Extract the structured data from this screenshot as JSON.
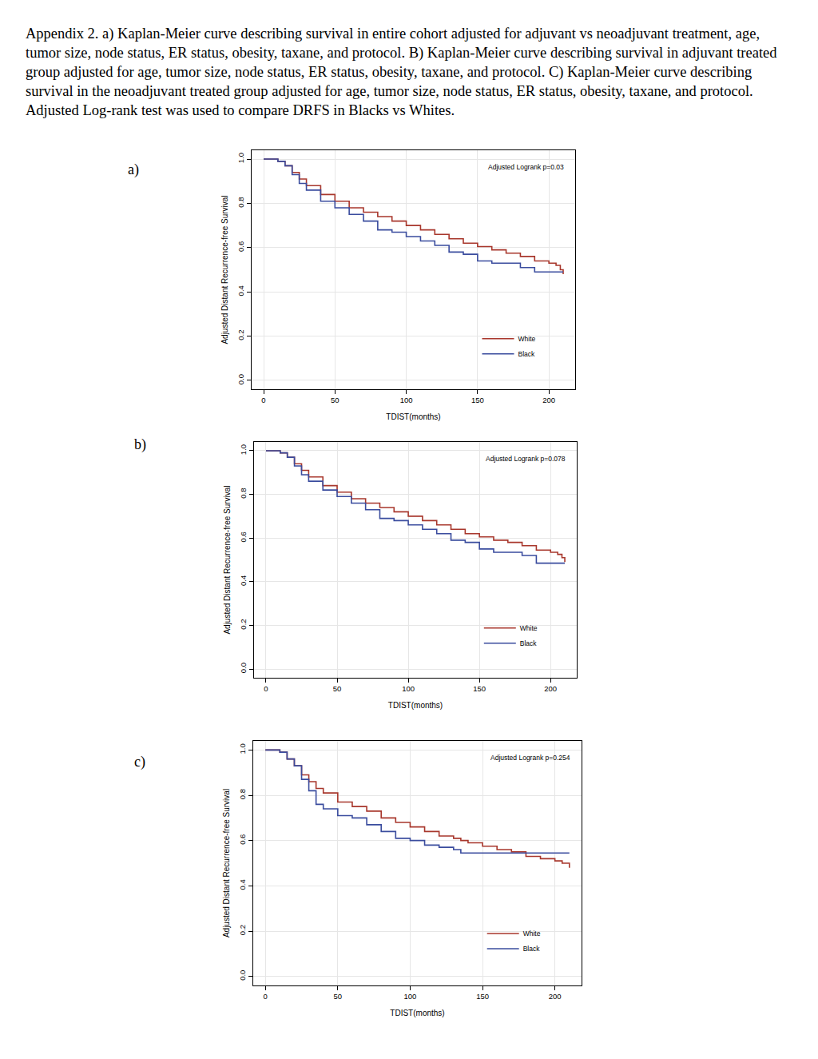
{
  "caption": "Appendix 2. a) Kaplan-Meier curve describing survival in entire cohort adjusted for adjuvant vs neoadjuvant treatment, age, tumor size, node status, ER status, obesity, taxane, and protocol. B) Kaplan-Meier curve describing survival in adjuvant treated group adjusted for age, tumor size, node status, ER status, obesity, taxane, and protocol. C) Kaplan-Meier curve describing survival in the  neoadjuvant treated group adjusted for age, tumor size, node status, ER status, obesity, taxane, and protocol. Adjusted Log-rank test was used to compare DRFS in Blacks vs Whites.",
  "panel_labels": [
    "a)",
    "b)",
    "c)"
  ],
  "chart_data": [
    {
      "type": "line",
      "x_label": "TDIST(months)",
      "y_label": "Adjusted Distant Recurrence-free Survival",
      "annotations": [
        "Adjusted Logrank p=0.03"
      ],
      "x": [
        0,
        5,
        10,
        15,
        20,
        25,
        30,
        40,
        50,
        60,
        70,
        80,
        90,
        100,
        110,
        120,
        130,
        140,
        150,
        160,
        170,
        180,
        190,
        200,
        205,
        208,
        210
      ],
      "series": [
        {
          "name": "White",
          "color": "#a8372c",
          "values": [
            1,
            1,
            0.99,
            0.97,
            0.94,
            0.91,
            0.88,
            0.84,
            0.81,
            0.78,
            0.76,
            0.74,
            0.72,
            0.7,
            0.68,
            0.66,
            0.64,
            0.62,
            0.605,
            0.59,
            0.575,
            0.56,
            0.54,
            0.53,
            0.52,
            0.5,
            0.48
          ]
        },
        {
          "name": "Black",
          "color": "#3a4c9e",
          "values": [
            1,
            1,
            0.99,
            0.97,
            0.93,
            0.89,
            0.86,
            0.81,
            0.78,
            0.75,
            0.72,
            0.68,
            0.67,
            0.65,
            0.63,
            0.61,
            0.58,
            0.57,
            0.54,
            0.53,
            0.53,
            0.51,
            0.49,
            0.49,
            0.49,
            0.49,
            0.49
          ]
        }
      ],
      "xlim": [
        -8.4,
        218.4
      ],
      "xticks": [
        0,
        50,
        100,
        150,
        200
      ],
      "ylim": [
        -0.04,
        1.04
      ],
      "yticks": [
        {
          "value": 0,
          "label": "0.0"
        },
        0.2,
        0.4,
        0.6,
        0.8,
        {
          "value": 1,
          "label": "1.0"
        }
      ],
      "grid": true,
      "legend": "lower right",
      "line_style": "step"
    },
    {
      "type": "line",
      "x_label": "TDIST(months)",
      "y_label": "Adjusted Distant Recurrence-free Survival",
      "annotations": [
        "Adjusted Logrank p=0.078"
      ],
      "x": [
        0,
        5,
        10,
        15,
        20,
        25,
        30,
        40,
        50,
        60,
        70,
        80,
        90,
        100,
        110,
        120,
        130,
        140,
        150,
        160,
        170,
        180,
        190,
        200,
        205,
        208,
        210
      ],
      "series": [
        {
          "name": "White",
          "color": "#a8372c",
          "values": [
            1,
            1,
            0.99,
            0.97,
            0.94,
            0.91,
            0.88,
            0.84,
            0.81,
            0.78,
            0.76,
            0.74,
            0.72,
            0.7,
            0.68,
            0.66,
            0.64,
            0.62,
            0.605,
            0.59,
            0.58,
            0.565,
            0.545,
            0.535,
            0.525,
            0.51,
            0.49
          ]
        },
        {
          "name": "Black",
          "color": "#3a4c9e",
          "values": [
            1,
            1,
            0.99,
            0.97,
            0.93,
            0.89,
            0.86,
            0.82,
            0.79,
            0.76,
            0.73,
            0.69,
            0.68,
            0.66,
            0.64,
            0.62,
            0.59,
            0.58,
            0.55,
            0.535,
            0.535,
            0.52,
            0.485,
            0.485,
            0.485,
            0.485,
            0.485
          ]
        }
      ],
      "xlim": [
        -8.4,
        218.4
      ],
      "xticks": [
        0,
        50,
        100,
        150,
        200
      ],
      "ylim": [
        -0.04,
        1.04
      ],
      "yticks": [
        {
          "value": 0,
          "label": "0.0"
        },
        0.2,
        0.4,
        0.6,
        0.8,
        {
          "value": 1,
          "label": "1.0"
        }
      ],
      "grid": true,
      "legend": "lower right",
      "line_style": "step"
    },
    {
      "type": "line",
      "x_label": "TDIST(months)",
      "y_label": "Adjusted Distant Recurrence-free Survival",
      "annotations": [
        "Adjusted Logrank p=0.254"
      ],
      "x": [
        0,
        5,
        10,
        15,
        20,
        25,
        30,
        35,
        40,
        50,
        60,
        70,
        80,
        90,
        100,
        110,
        120,
        130,
        135,
        140,
        150,
        160,
        170,
        180,
        190,
        200,
        205,
        210
      ],
      "series": [
        {
          "name": "White",
          "color": "#a8372c",
          "values": [
            1,
            1,
            0.99,
            0.96,
            0.93,
            0.89,
            0.86,
            0.83,
            0.81,
            0.77,
            0.75,
            0.73,
            0.7,
            0.68,
            0.66,
            0.64,
            0.62,
            0.61,
            0.6,
            0.59,
            0.575,
            0.56,
            0.55,
            0.53,
            0.52,
            0.51,
            0.5,
            0.48
          ]
        },
        {
          "name": "Black",
          "color": "#3a4c9e",
          "values": [
            1,
            1,
            0.99,
            0.96,
            0.93,
            0.87,
            0.82,
            0.76,
            0.74,
            0.71,
            0.7,
            0.67,
            0.64,
            0.61,
            0.6,
            0.58,
            0.57,
            0.56,
            0.545,
            0.545,
            0.545,
            0.545,
            0.545,
            0.545,
            0.545,
            0.545,
            0.545,
            0.545
          ]
        }
      ],
      "xlim": [
        -8.4,
        218.4
      ],
      "xticks": [
        0,
        50,
        100,
        150,
        200
      ],
      "ylim": [
        -0.04,
        1.04
      ],
      "yticks": [
        {
          "value": 0,
          "label": "0.0"
        },
        0.2,
        0.4,
        0.6,
        0.8,
        {
          "value": 1,
          "label": "1.0"
        }
      ],
      "grid": true,
      "legend": "lower right",
      "line_style": "step"
    }
  ]
}
